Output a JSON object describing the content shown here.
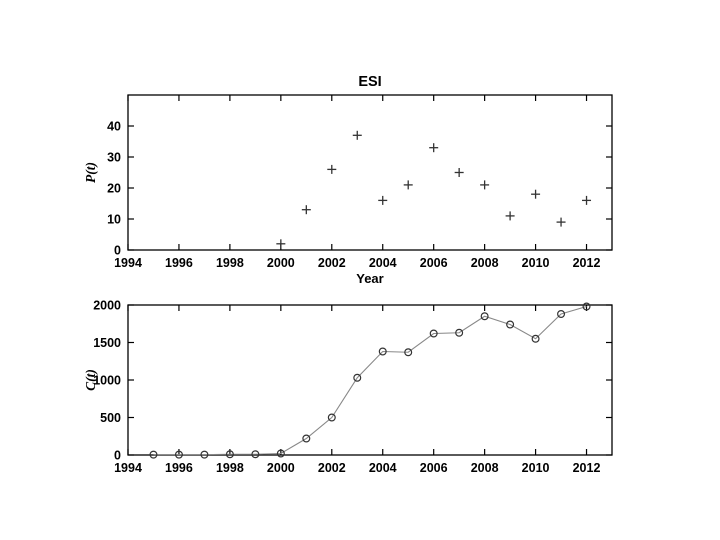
{
  "figure": {
    "background": "#ffffff"
  },
  "colors": {
    "axis": "#000000",
    "text": "#000000",
    "marker": "#333333",
    "line": "#888888"
  },
  "chart_data": [
    {
      "type": "scatter",
      "title": "ESI",
      "xlabel": "Year",
      "ylabel": "P(t)",
      "marker": "plus",
      "grid": false,
      "xlim": [
        1994,
        2013
      ],
      "ylim": [
        0,
        50
      ],
      "xticks": [
        1994,
        1996,
        1998,
        2000,
        2002,
        2004,
        2006,
        2008,
        2010,
        2012
      ],
      "yticks": [
        0,
        10,
        20,
        30,
        40
      ],
      "x": [
        2000,
        2001,
        2002,
        2003,
        2004,
        2005,
        2006,
        2007,
        2008,
        2009,
        2010,
        2011,
        2012
      ],
      "y": [
        2,
        13,
        26,
        37,
        16,
        21,
        33,
        25,
        21,
        11,
        18,
        9,
        16
      ]
    },
    {
      "type": "line",
      "title": "",
      "xlabel": "",
      "ylabel": "C(t)",
      "marker": "circle",
      "grid": false,
      "xlim": [
        1994,
        2013
      ],
      "ylim": [
        0,
        2000
      ],
      "xticks": [
        1994,
        1996,
        1998,
        2000,
        2002,
        2004,
        2006,
        2008,
        2010,
        2012
      ],
      "yticks": [
        0,
        500,
        1000,
        1500,
        2000
      ],
      "x": [
        1995,
        1996,
        1997,
        1998,
        1999,
        2000,
        2001,
        2002,
        2003,
        2004,
        2005,
        2006,
        2007,
        2008,
        2009,
        2010,
        2011,
        2012
      ],
      "y": [
        5,
        5,
        5,
        10,
        10,
        20,
        220,
        500,
        1030,
        1380,
        1370,
        1620,
        1630,
        1850,
        1740,
        1550,
        1880,
        1980
      ]
    }
  ]
}
